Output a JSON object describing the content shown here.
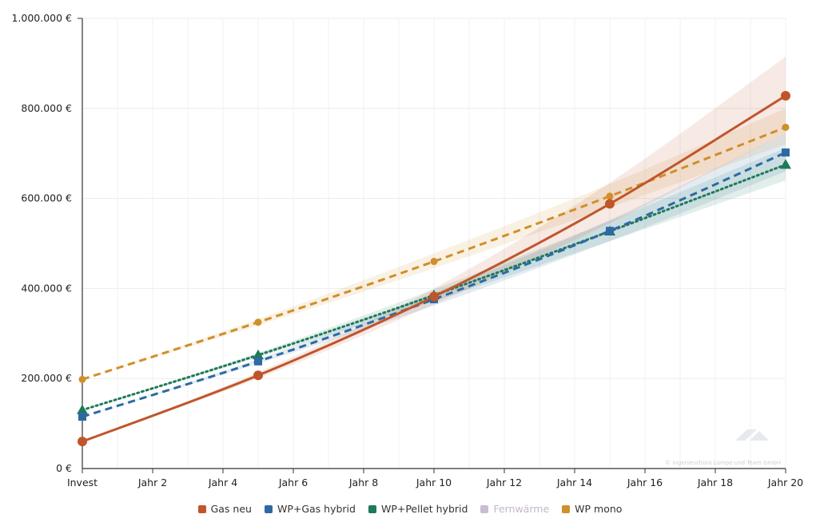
{
  "chart_data": {
    "type": "line",
    "categories": [
      "Invest",
      "Jahr 2",
      "Jahr 4",
      "Jahr 6",
      "Jahr 8",
      "Jahr 10",
      "Jahr 12",
      "Jahr 14",
      "Jahr 16",
      "Jahr 18",
      "Jahr 20"
    ],
    "x_range": [
      0,
      20
    ],
    "ylim": [
      0,
      1000000
    ],
    "y_ticks": [
      0,
      200000,
      400000,
      600000,
      800000,
      1000000
    ],
    "y_tick_labels": [
      "0 €",
      "200.000 €",
      "400.000 €",
      "600.000 €",
      "800.000 €",
      "1.000.000 €"
    ],
    "grid": true,
    "legend_position": "bottom-center",
    "watermark": "© Ingenieurbüro Lampe und Team GmbH",
    "series": [
      {
        "name": "Gas neu",
        "color": "#c0552b",
        "style": "solid",
        "marker": "circle",
        "x": [
          0,
          5,
          10,
          15,
          20
        ],
        "values": [
          60000,
          207000,
          382000,
          588000,
          828000
        ],
        "band_lower": [
          60000,
          200000,
          365000,
          545000,
          745000
        ],
        "band_upper": [
          60000,
          214000,
          400000,
          635000,
          915000
        ]
      },
      {
        "name": "WP+Gas hybrid",
        "color": "#2d6aa3",
        "style": "dashed",
        "marker": "square",
        "x": [
          0,
          5,
          10,
          15,
          20
        ],
        "values": [
          115000,
          238000,
          376000,
          528000,
          702000
        ],
        "band_lower": [
          115000,
          233000,
          362000,
          505000,
          660000
        ],
        "band_upper": [
          115000,
          243000,
          390000,
          552000,
          745000
        ]
      },
      {
        "name": "WP+Pellet hybrid",
        "color": "#1f7a5a",
        "style": "dotted",
        "marker": "triangle",
        "x": [
          0,
          5,
          10,
          15,
          20
        ],
        "values": [
          130000,
          252000,
          385000,
          527000,
          675000
        ],
        "band_lower": [
          130000,
          247000,
          372000,
          505000,
          640000
        ],
        "band_upper": [
          130000,
          257000,
          398000,
          550000,
          712000
        ]
      },
      {
        "name": "Fernwärme",
        "color": "#c9bcd6",
        "style": "hidden",
        "marker": "none",
        "x": [],
        "values": []
      },
      {
        "name": "WP mono",
        "color": "#cf8f2a",
        "style": "dashed",
        "marker": "circle-small",
        "x": [
          0,
          5,
          10,
          15,
          20
        ],
        "values": [
          198000,
          325000,
          460000,
          605000,
          758000
        ],
        "band_lower": [
          198000,
          318000,
          445000,
          580000,
          720000
        ],
        "band_upper": [
          198000,
          332000,
          478000,
          632000,
          800000
        ]
      }
    ]
  }
}
